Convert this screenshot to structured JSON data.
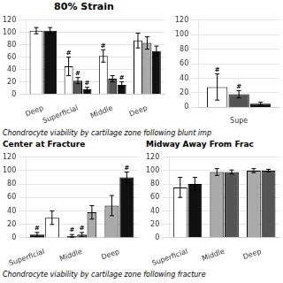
{
  "chart_data": [
    {
      "type": "bar",
      "title": "80% Strain",
      "annotations": [
        "Chondrocyte viability by cartilage zone following blunt imp"
      ],
      "categories": [
        "Deep",
        "Superficial",
        "Middle",
        "Deep"
      ],
      "series": [
        {
          "values": [
            103,
            45,
            62,
            87
          ],
          "colors": [
            "#FFFFFF",
            "#FFFFFF",
            "#FFFFFF",
            "#FFFFFF"
          ],
          "errors": [
            5,
            15,
            10,
            12
          ],
          "mark_labels": [
            null,
            "#",
            "#",
            null
          ]
        },
        {
          "values": [
            103,
            22,
            25,
            83
          ],
          "colors": [
            "#111111",
            "#555555",
            "#555555",
            "#AAAAAA"
          ],
          "errors": [
            5,
            5,
            5,
            10
          ],
          "mark_labels": [
            null,
            "#",
            null,
            null
          ]
        },
        {
          "values": [
            null,
            8,
            15,
            70
          ],
          "colors": [
            null,
            "#111111",
            "#111111",
            "#111111"
          ],
          "errors": [
            null,
            3,
            5,
            8
          ],
          "mark_labels": [
            null,
            "#",
            "#",
            null
          ]
        }
      ],
      "ylim": [
        0,
        120
      ],
      "yticks": [
        0,
        20,
        40,
        60,
        80,
        100,
        120
      ],
      "grid": true
    },
    {
      "type": "bar",
      "categories": [
        "Supe"
      ],
      "series": [
        {
          "values": [
            28
          ],
          "colors": [
            "#FFFFFF"
          ],
          "errors": [
            18
          ],
          "mark_labels": [
            "#"
          ]
        },
        {
          "values": [
            18
          ],
          "colors": [
            "#555555"
          ],
          "errors": [
            5
          ],
          "mark_labels": [
            "#"
          ]
        },
        {
          "values": [
            5
          ],
          "colors": [
            "#111111"
          ],
          "errors": [
            2
          ],
          "mark_labels": [
            null
          ]
        }
      ],
      "ylim": [
        0,
        120
      ],
      "yticks": [
        0,
        20,
        40,
        60,
        80,
        100,
        120
      ],
      "grid": true
    },
    {
      "type": "bar",
      "title": "Center at Fracture",
      "annotations": [
        "Chondrocyte viability by cartilage zone following fracture"
      ],
      "categories": [
        "Superficial",
        "Middle",
        "Deep"
      ],
      "series": [
        {
          "values": [
            5,
            3,
            48
          ],
          "colors": [
            "#111111",
            "#111111",
            "#AAAAAA"
          ],
          "errors": [
            3,
            2,
            15
          ],
          "mark_labels": [
            "#",
            "#",
            null
          ]
        },
        {
          "values": [
            30,
            5,
            90
          ],
          "colors": [
            "#FFFFFF",
            "#555555",
            "#111111"
          ],
          "errors": [
            10,
            3,
            8
          ],
          "mark_labels": [
            null,
            "#",
            "#"
          ]
        },
        {
          "values": [
            null,
            38,
            null
          ],
          "colors": [
            null,
            "#AAAAAA",
            null
          ],
          "errors": [
            null,
            10,
            null
          ],
          "mark_labels": [
            null,
            null,
            null
          ]
        }
      ],
      "ylim": [
        0,
        120
      ],
      "yticks": [
        0,
        20,
        40,
        60,
        80,
        100,
        120
      ],
      "grid": true
    },
    {
      "type": "bar",
      "title": "Midway Away From Frac",
      "categories": [
        "Superficial",
        "Middle",
        "Deep"
      ],
      "series": [
        {
          "values": [
            75,
            98,
            100
          ],
          "colors": [
            "#FFFFFF",
            "#AAAAAA",
            "#AAAAAA"
          ],
          "errors": [
            15,
            5,
            3
          ]
        },
        {
          "values": [
            80,
            98,
            100
          ],
          "colors": [
            "#111111",
            "#555555",
            "#555555"
          ],
          "errors": [
            10,
            3,
            2
          ]
        }
      ],
      "ylim": [
        0,
        120
      ],
      "yticks": [
        0,
        20,
        40,
        60,
        80,
        100,
        120
      ],
      "grid": true
    }
  ]
}
